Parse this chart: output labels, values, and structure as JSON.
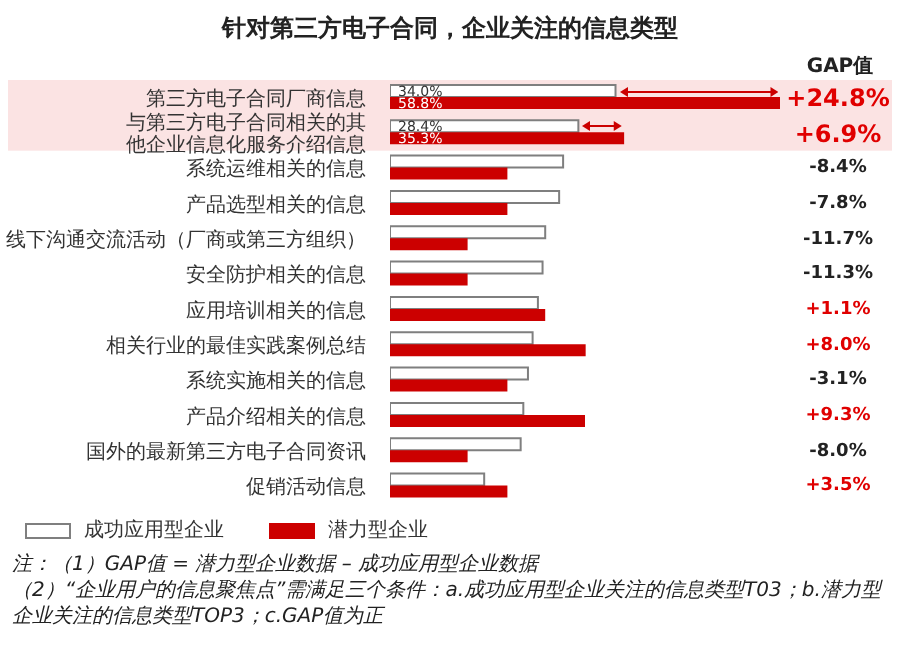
{
  "chart_data": {
    "type": "bar",
    "orientation": "horizontal",
    "title": "针对第三方电子合同，企业关注的信息类型",
    "categories": [
      "第三方电子合同厂商信息",
      "与第三方电子合同相关的其他企业信息化服务介绍信息",
      "系统运维相关的信息",
      "产品选型相关的信息",
      "线下沟通交流活动（厂商或第三方组织）",
      "安全防护相关的信息",
      "应用培训相关的信息",
      "相关行业的最佳实践案例总结",
      "系统实施相关的信息",
      "产品介绍相关的信息",
      "国外的最新第三方电子合同资讯",
      "促销活动信息"
    ],
    "series": [
      {
        "name": "成功应用型企业",
        "color": "#ffffff",
        "values": [
          34.0,
          28.4,
          26.1,
          25.5,
          23.4,
          23.0,
          22.3,
          21.5,
          20.8,
          20.1,
          19.7,
          14.2
        ],
        "value_labels": [
          "34.0%",
          "28.4%",
          null,
          null,
          null,
          null,
          null,
          null,
          null,
          null,
          null,
          null
        ]
      },
      {
        "name": "潜力型企业",
        "color": "#cc0000",
        "values": [
          58.8,
          35.3,
          17.7,
          17.7,
          11.7,
          11.7,
          23.4,
          29.5,
          17.7,
          29.4,
          11.7,
          17.7
        ],
        "value_labels": [
          "58.8%",
          "35.3%",
          null,
          null,
          null,
          null,
          null,
          null,
          null,
          null,
          null,
          null
        ]
      }
    ],
    "bands": [
      {
        "axis": "y",
        "from": "第三方电子合同厂商信息",
        "to": "与第三方电子合同相关的其他企业信息化服务介绍信息",
        "color": "#fbe3e3"
      }
    ],
    "annotations": [
      "GAP值",
      "+24.8%",
      "+6.9%",
      "-8.4%",
      "-7.8%",
      "-11.7%",
      "-11.3%",
      "+1.1%",
      "+8.0%",
      "-3.1%",
      "+9.3%",
      "-8.0%",
      "+3.5%",
      "注：（1）GAP值 = 潜力型企业数据 – 成功应用型企业数据",
      "（2）“企业用户的信息聚焦点”需满足三个条件：a.成功应用型企业关注的信息类型T03；b.潜力型企业关注的信息类型TOP3；c.GAP值为正"
    ],
    "legend": "bottom left",
    "tick_labels": "y"
  }
}
